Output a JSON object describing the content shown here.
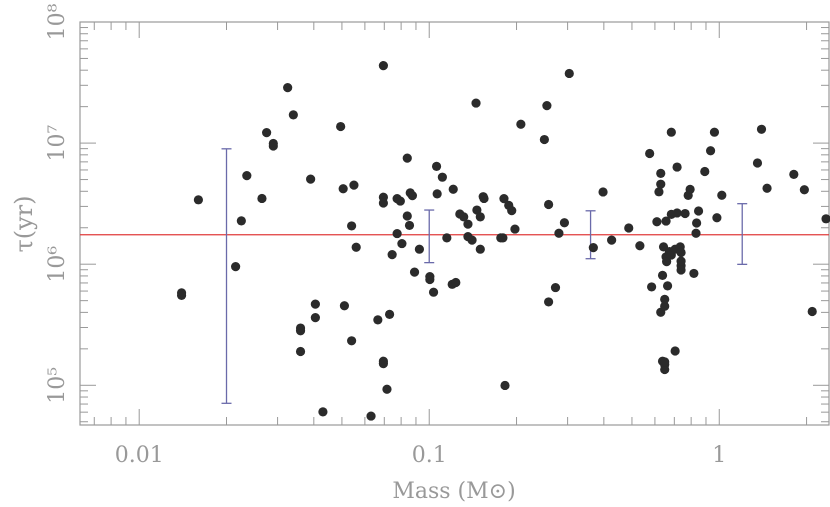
{
  "chart_data": {
    "type": "scatter",
    "title": "",
    "xlabel": "Mass (M⊙)",
    "ylabel": "τ(yr)",
    "x_scale": "log",
    "y_scale": "log",
    "xlim": [
      0.00625,
      2.39
    ],
    "ylim": [
      47000,
      100000000
    ],
    "grid": false,
    "legend": "none",
    "x_ticks": [
      {
        "value": 0.01,
        "label": "0.01"
      },
      {
        "value": 0.1,
        "label": "0.1"
      },
      {
        "value": 1,
        "label": "1"
      }
    ],
    "y_ticks": [
      {
        "value": 100000,
        "label": "10⁵"
      },
      {
        "value": 1000000,
        "label": "10⁶"
      },
      {
        "value": 10000000,
        "label": "10⁷"
      },
      {
        "value": 100000000,
        "label": "10⁸"
      }
    ],
    "reference_line": {
      "y": 1750000,
      "color": "#e03c3c"
    },
    "series": [
      {
        "color": "#2b2b2b",
        "points": [
          [
            0.014,
            553000
          ],
          [
            0.014,
            580000
          ],
          [
            0.016,
            3400000
          ],
          [
            0.0215,
            955000
          ],
          [
            0.0225,
            2280000
          ],
          [
            0.0235,
            5390000
          ],
          [
            0.0265,
            3490000
          ],
          [
            0.0275,
            12200000
          ],
          [
            0.029,
            9920000
          ],
          [
            0.029,
            9460000
          ],
          [
            0.0325,
            28700000
          ],
          [
            0.034,
            17100000
          ],
          [
            0.036,
            190000
          ],
          [
            0.036,
            282000
          ],
          [
            0.036,
            297000
          ],
          [
            0.039,
            5040000
          ],
          [
            0.0405,
            362000
          ],
          [
            0.0405,
            468000
          ],
          [
            0.043,
            60300
          ],
          [
            0.0495,
            13700000
          ],
          [
            0.0505,
            4200000
          ],
          [
            0.051,
            454000
          ],
          [
            0.054,
            2070000
          ],
          [
            0.054,
            233000
          ],
          [
            0.055,
            4500000
          ],
          [
            0.056,
            1380000
          ],
          [
            0.063,
            55700
          ],
          [
            0.0665,
            347000
          ],
          [
            0.0695,
            43600000
          ],
          [
            0.0695,
            3570000
          ],
          [
            0.0695,
            3200000
          ],
          [
            0.0695,
            158000
          ],
          [
            0.0695,
            151000
          ],
          [
            0.0715,
            92800
          ],
          [
            0.073,
            385000
          ],
          [
            0.0745,
            1200000
          ],
          [
            0.0775,
            1790000
          ],
          [
            0.0775,
            3480000
          ],
          [
            0.0795,
            3320000
          ],
          [
            0.0805,
            1480000
          ],
          [
            0.084,
            7510000
          ],
          [
            0.084,
            2500000
          ],
          [
            0.0855,
            2090000
          ],
          [
            0.086,
            3880000
          ],
          [
            0.0875,
            3680000
          ],
          [
            0.089,
            860000
          ],
          [
            0.0925,
            1330000
          ],
          [
            0.1005,
            790000
          ],
          [
            0.1005,
            747000
          ],
          [
            0.1035,
            587000
          ],
          [
            0.106,
            6420000
          ],
          [
            0.1065,
            3810000
          ],
          [
            0.111,
            5230000
          ],
          [
            0.115,
            1650000
          ],
          [
            0.12,
            682000
          ],
          [
            0.1235,
            706000
          ],
          [
            0.121,
            4160000
          ],
          [
            0.1275,
            2600000
          ],
          [
            0.1315,
            2460000
          ],
          [
            0.136,
            2140000
          ],
          [
            0.136,
            1690000
          ],
          [
            0.1405,
            1580000
          ],
          [
            0.145,
            21400000
          ],
          [
            0.146,
            2800000
          ],
          [
            0.15,
            1330000
          ],
          [
            0.15,
            2460000
          ],
          [
            0.1535,
            3610000
          ],
          [
            0.1545,
            3490000
          ],
          [
            0.1765,
            1650000
          ],
          [
            0.1795,
            1650000
          ],
          [
            0.181,
            3480000
          ],
          [
            0.1825,
            99700
          ],
          [
            0.188,
            3060000
          ],
          [
            0.1925,
            2770000
          ],
          [
            0.1975,
            1950000
          ],
          [
            0.207,
            14300000
          ],
          [
            0.2495,
            10700000
          ],
          [
            0.2545,
            20400000
          ],
          [
            0.258,
            488000
          ],
          [
            0.258,
            3110000
          ],
          [
            0.2725,
            641000
          ],
          [
            0.28,
            1800000
          ],
          [
            0.2925,
            2200000
          ],
          [
            0.304,
            37600000
          ],
          [
            0.368,
            1370000
          ],
          [
            0.3975,
            3950000
          ],
          [
            0.4255,
            1580000
          ],
          [
            0.4875,
            1990000
          ],
          [
            0.5325,
            1420000
          ],
          [
            0.5755,
            8210000
          ],
          [
            0.5845,
            649000
          ],
          [
            0.6095,
            2240000
          ],
          [
            0.6195,
            3960000
          ],
          [
            0.6285,
            5620000
          ],
          [
            0.6285,
            4580000
          ],
          [
            0.6285,
            401000
          ],
          [
            0.6375,
            809000
          ],
          [
            0.6425,
            1390000
          ],
          [
            0.6375,
            158000
          ],
          [
            0.6485,
            148000
          ],
          [
            0.6485,
            135000
          ],
          [
            0.6485,
            156000
          ],
          [
            0.6485,
            449000
          ],
          [
            0.6485,
            512000
          ],
          [
            0.6555,
            1150000
          ],
          [
            0.6555,
            2270000
          ],
          [
            0.6585,
            1050000
          ],
          [
            0.6635,
            662000
          ],
          [
            0.6735,
            1270000
          ],
          [
            0.6835,
            1190000
          ],
          [
            0.6835,
            2580000
          ],
          [
            0.6835,
            12300000
          ],
          [
            0.7045,
            192000
          ],
          [
            0.7045,
            1330000
          ],
          [
            0.7155,
            6340000
          ],
          [
            0.7155,
            2650000
          ],
          [
            0.7335,
            1390000
          ],
          [
            0.7385,
            970000
          ],
          [
            0.7385,
            1250000
          ],
          [
            0.7385,
            1060000
          ],
          [
            0.7385,
            896000
          ],
          [
            0.7625,
            2620000
          ],
          [
            0.7815,
            3700000
          ],
          [
            0.7935,
            4150000
          ],
          [
            0.8175,
            839000
          ],
          [
            0.8315,
            1800000
          ],
          [
            0.8355,
            2190000
          ],
          [
            0.8485,
            2750000
          ],
          [
            0.8915,
            5830000
          ],
          [
            0.9335,
            8650000
          ],
          [
            0.9625,
            12300000
          ],
          [
            0.9815,
            2420000
          ],
          [
            1.0205,
            3710000
          ],
          [
            1.3545,
            6850000
          ],
          [
            1.3985,
            13000000
          ],
          [
            1.4615,
            4240000
          ],
          [
            1.8075,
            5520000
          ],
          [
            1.9655,
            4120000
          ],
          [
            2.092,
            407000
          ],
          [
            2.3345,
            2370000
          ]
        ]
      }
    ],
    "error_bars": [
      {
        "x": 0.02,
        "low": 71000,
        "high": 8970000
      },
      {
        "x": 0.1,
        "low": 1030000,
        "high": 2800000
      },
      {
        "x": 0.36,
        "low": 1110000,
        "high": 2760000
      },
      {
        "x": 1.2,
        "low": 997000,
        "high": 3160000
      }
    ],
    "error_bar_color": "#6a6aaa"
  }
}
